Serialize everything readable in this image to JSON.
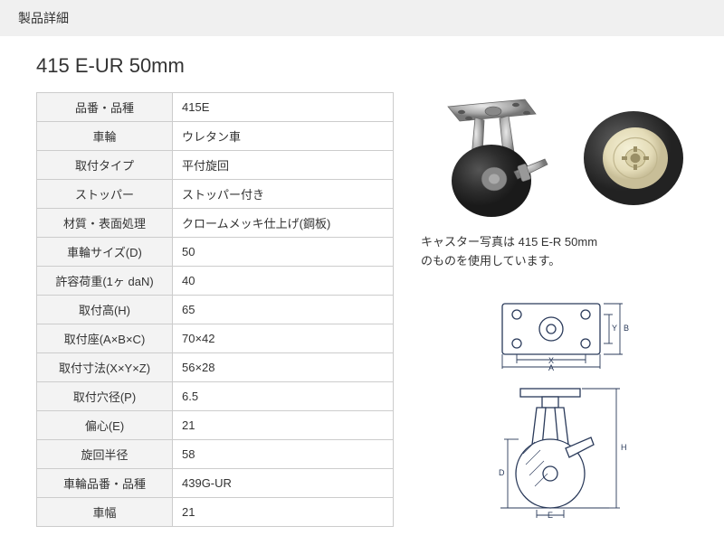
{
  "header": {
    "title": "製品詳細"
  },
  "product": {
    "title": "415 E-UR 50mm"
  },
  "spec_table": {
    "rows": [
      {
        "label": "品番・品種",
        "value": "415E"
      },
      {
        "label": "車輪",
        "value": "ウレタン車"
      },
      {
        "label": "取付タイプ",
        "value": "平付旋回"
      },
      {
        "label": "ストッパー",
        "value": "ストッパー付き"
      },
      {
        "label": "材質・表面処理",
        "value": "クロームメッキ仕上げ(鋼板)"
      },
      {
        "label": "車輪サイズ(D)",
        "value": "50"
      },
      {
        "label": "許容荷重(1ヶ daN)",
        "value": "40"
      },
      {
        "label": "取付高(H)",
        "value": "65"
      },
      {
        "label": "取付座(A×B×C)",
        "value": "70×42"
      },
      {
        "label": "取付寸法(X×Y×Z)",
        "value": "56×28"
      },
      {
        "label": "取付穴径(P)",
        "value": "6.5"
      },
      {
        "label": "偏心(E)",
        "value": "21"
      },
      {
        "label": "旋回半径",
        "value": "58"
      },
      {
        "label": "車輪品番・品種",
        "value": "439G-UR"
      },
      {
        "label": "車幅",
        "value": "21"
      }
    ]
  },
  "images": {
    "caster_photo_caption_line1": "キャスター写真は 415 E-R 50mm",
    "caster_photo_caption_line2": "のものを使用しています。",
    "caster_colors": {
      "metal": "#b8b9ba",
      "metal_dark": "#7a7b7c",
      "wheel": "#2d2d2d",
      "wheel_hl": "#555",
      "hub": "#e8e4c8",
      "hub_dark": "#c8c0a0"
    },
    "diagram_colors": {
      "stroke": "#2a3a5a",
      "fill": "#ffffff"
    },
    "dim_labels": {
      "A": "A",
      "X": "X",
      "B": "B",
      "Y": "Y",
      "H": "H",
      "D": "D",
      "E": "E"
    }
  }
}
